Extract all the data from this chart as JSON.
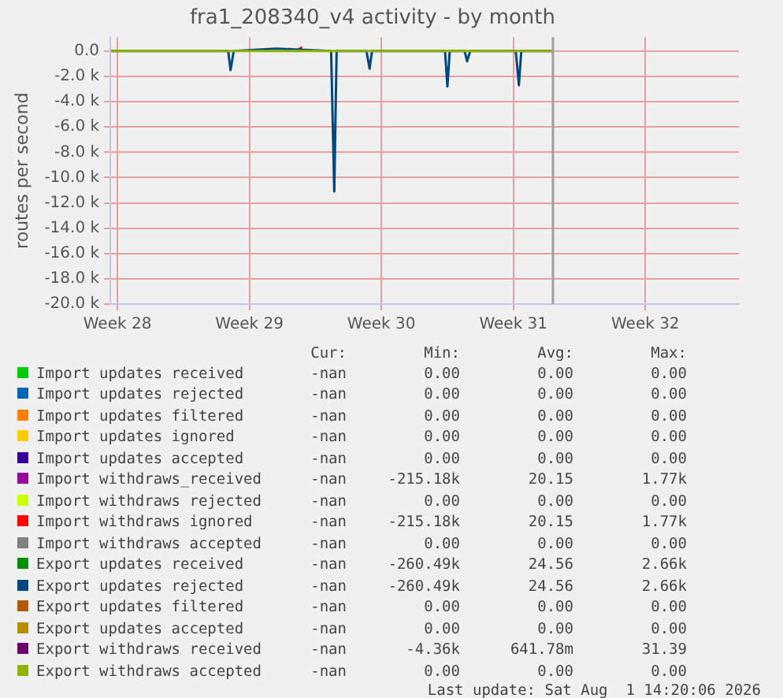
{
  "chart_data": {
    "type": "line",
    "title": "fra1_208340_v4 activity - by month",
    "ylabel": "routes per second",
    "xlim": [
      "2026-07-09T03:00",
      "2026-08-11T11:00"
    ],
    "xticks": [
      {
        "value": "2026-07-09T12:00",
        "label": "Week 28"
      },
      {
        "value": "2026-07-16T12:00",
        "label": "Week 29"
      },
      {
        "value": "2026-07-23T12:00",
        "label": "Week 30"
      },
      {
        "value": "2026-07-30T12:00",
        "label": "Week 31"
      },
      {
        "value": "2026-08-06T12:00",
        "label": "Week 32"
      }
    ],
    "ylim": [
      -20000,
      1100
    ],
    "yticks": [
      {
        "value": -20000,
        "label": "-20.0 k"
      },
      {
        "value": -18000,
        "label": "-18.0 k"
      },
      {
        "value": -16000,
        "label": "-16.0 k"
      },
      {
        "value": -14000,
        "label": "-14.0 k"
      },
      {
        "value": -12000,
        "label": "-12.0 k"
      },
      {
        "value": -10000,
        "label": "-10.0 k"
      },
      {
        "value": -8000,
        "label": "-8.0 k"
      },
      {
        "value": -6000,
        "label": "-6.0 k"
      },
      {
        "value": -4000,
        "label": "-4.0 k"
      },
      {
        "value": -2000,
        "label": "-2.0 k"
      },
      {
        "value": 0,
        "label": "0.0"
      }
    ],
    "grid": true,
    "legend": "bottom",
    "marker": "none",
    "line_style": "solid",
    "ref_lines": [
      {
        "axis": "x",
        "value": "2026-08-01T14:20",
        "color": "#a0a0a0"
      }
    ],
    "series": [
      {
        "name": "Import updates received",
        "color": "#00cc00"
      },
      {
        "name": "Import updates rejected",
        "color": "#0066b3"
      },
      {
        "name": "Import updates filtered",
        "color": "#ff8000"
      },
      {
        "name": "Import updates ignored",
        "color": "#ffcc00"
      },
      {
        "name": "Import updates accepted",
        "color": "#330099"
      },
      {
        "name": "Import withdraws_received",
        "color": "#990099"
      },
      {
        "name": "Import withdraws rejected",
        "color": "#ccff00"
      },
      {
        "name": "Import withdraws ignored",
        "color": "#ff0000",
        "x": [
          "2026-07-18T14:00",
          "2026-07-18T23:00",
          "2026-07-19T07:00"
        ],
        "values": [
          200,
          0,
          300
        ]
      },
      {
        "name": "Import withdraws accepted",
        "color": "#808080"
      },
      {
        "name": "Export updates received",
        "color": "#008f00"
      },
      {
        "name": "Export updates rejected",
        "color": "#00487d",
        "x": [
          "2026-07-09T04:00",
          "2026-07-15T09:00",
          "2026-07-15T12:00",
          "2026-07-15T16:00",
          "2026-07-17T22:00",
          "2026-07-20T20:00",
          "2026-07-21T00:00",
          "2026-07-21T03:00",
          "2026-07-22T17:00",
          "2026-07-22T21:00",
          "2026-07-23T00:00",
          "2026-07-26T21:00",
          "2026-07-27T00:00",
          "2026-07-27T03:00",
          "2026-07-27T22:00",
          "2026-07-28T01:00",
          "2026-07-28T05:00",
          "2026-07-30T15:00",
          "2026-07-30T19:00",
          "2026-07-30T22:00",
          "2026-08-01T14:00"
        ],
        "values": [
          0,
          0,
          -1500,
          0,
          200,
          0,
          -11100,
          0,
          0,
          -1400,
          0,
          0,
          -2800,
          0,
          0,
          -800,
          0,
          0,
          -2700,
          0,
          0
        ]
      },
      {
        "name": "Export updates filtered",
        "color": "#b35a00"
      },
      {
        "name": "Export updates accepted",
        "color": "#b38f00"
      },
      {
        "name": "Export withdraws received",
        "color": "#6b006b"
      },
      {
        "name": "Export withdraws accepted",
        "color": "#8fb300",
        "x": [
          "2026-07-09T04:00",
          "2026-08-01T14:00"
        ],
        "values": [
          0,
          0
        ]
      }
    ],
    "annotations": [
      "Cur:",
      "Min:",
      "Avg:",
      "Max:",
      "-nan",
      "0.00",
      "0.00",
      "0.00",
      "-nan",
      "0.00",
      "0.00",
      "0.00",
      "-nan",
      "0.00",
      "0.00",
      "0.00",
      "-nan",
      "0.00",
      "0.00",
      "0.00",
      "-nan",
      "0.00",
      "0.00",
      "0.00",
      "-nan",
      "-215.18k",
      "20.15",
      "1.77k",
      "-nan",
      "0.00",
      "0.00",
      "0.00",
      "-nan",
      "-215.18k",
      "20.15",
      "1.77k",
      "-nan",
      "0.00",
      "0.00",
      "0.00",
      "-nan",
      "-260.49k",
      "24.56",
      "2.66k",
      "-nan",
      "-260.49k",
      "24.56",
      "2.66k",
      "-nan",
      "0.00",
      "0.00",
      "0.00",
      "-nan",
      "0.00",
      "0.00",
      "0.00",
      "-nan",
      "-4.36k",
      "641.78m",
      "31.39",
      "-nan",
      "0.00",
      "0.00",
      "0.00",
      "Last update: Sat Aug  1 14:20:06 2026"
    ]
  }
}
